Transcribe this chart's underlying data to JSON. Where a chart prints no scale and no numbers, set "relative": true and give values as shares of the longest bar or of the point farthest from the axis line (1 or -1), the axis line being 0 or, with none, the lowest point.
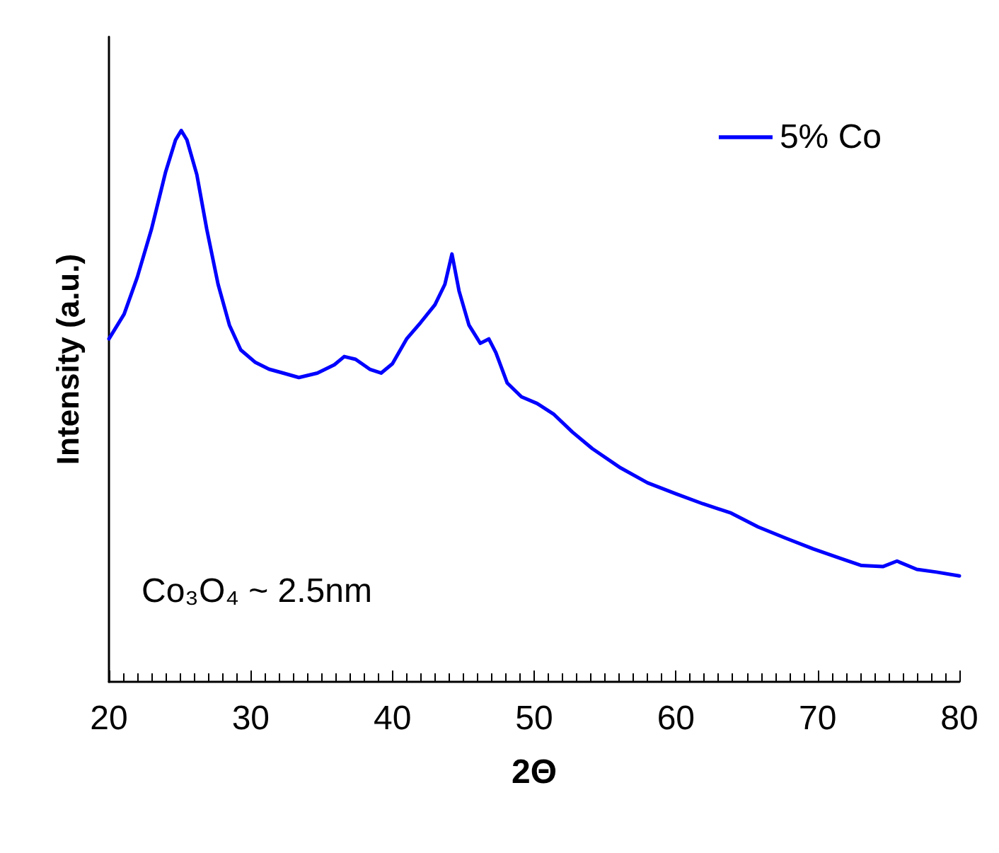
{
  "chart_data": {
    "type": "line",
    "relative": true,
    "xlabel": "2Θ",
    "ylabel": "Intensity (a.u.)",
    "annotations": [
      "Co₃O₄ ~ 2.5nm"
    ],
    "xlim": [
      20,
      80
    ],
    "xticks": [
      20,
      30,
      40,
      50,
      60,
      70,
      80
    ],
    "grid": false,
    "legend": "top right",
    "marker": "none",
    "line_style": "solid",
    "tick_labels": "x",
    "x": [
      20,
      21.07,
      22.0,
      23.0,
      24.0,
      24.7,
      25.1,
      25.5,
      26.2,
      26.9,
      27.7,
      28.5,
      29.3,
      30.3,
      31.3,
      32.3,
      33.4,
      34.7,
      35.9,
      36.6,
      37.4,
      38.4,
      39.2,
      40.0,
      41.0,
      42.0,
      43.0,
      43.7,
      44.2,
      44.7,
      45.4,
      46.2,
      46.8,
      47.3,
      48.1,
      49.1,
      50.2,
      51.4,
      52.7,
      54.1,
      56.1,
      58.0,
      60.0,
      61.9,
      63.9,
      65.8,
      67.7,
      69.7,
      71.6,
      73.1,
      74.6,
      75.6,
      77.0,
      78.4,
      80.0
    ],
    "series": [
      {
        "name": "5% Co",
        "color": "#0000ff",
        "values": [
          0.622,
          0.667,
          0.734,
          0.821,
          0.925,
          0.983,
          1.0,
          0.983,
          0.92,
          0.821,
          0.721,
          0.647,
          0.602,
          0.58,
          0.567,
          0.56,
          0.552,
          0.56,
          0.575,
          0.59,
          0.585,
          0.567,
          0.56,
          0.577,
          0.622,
          0.652,
          0.684,
          0.721,
          0.776,
          0.709,
          0.647,
          0.614,
          0.622,
          0.597,
          0.542,
          0.517,
          0.505,
          0.485,
          0.453,
          0.423,
          0.388,
          0.361,
          0.341,
          0.323,
          0.306,
          0.281,
          0.261,
          0.241,
          0.224,
          0.211,
          0.209,
          0.219,
          0.204,
          0.199,
          0.192
        ]
      }
    ]
  }
}
